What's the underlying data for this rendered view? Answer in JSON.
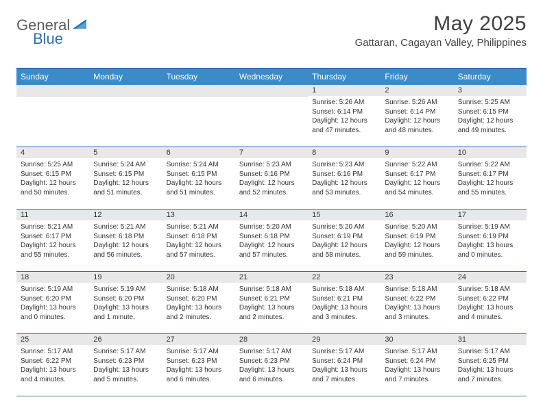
{
  "logo": {
    "part1": "General",
    "part2": "Blue"
  },
  "title": "May 2025",
  "location": "Gattaran, Cagayan Valley, Philippines",
  "colors": {
    "header_bg": "#3b8bc9",
    "border_top": "#2f6fb0",
    "row_divider": "#2f6fb0",
    "daynum_bg": "#e8e8e8",
    "text": "#333333",
    "logo_gray": "#5a5a5a",
    "logo_blue": "#2f6fb0",
    "title_color": "#404040",
    "background": "#ffffff"
  },
  "typography": {
    "month_title_size": 30,
    "location_size": 15,
    "day_header_size": 12,
    "daynum_size": 11,
    "detail_size": 10,
    "font_family": "Arial"
  },
  "day_headers": [
    "Sunday",
    "Monday",
    "Tuesday",
    "Wednesday",
    "Thursday",
    "Friday",
    "Saturday"
  ],
  "weeks": [
    [
      null,
      null,
      null,
      null,
      {
        "d": "1",
        "sr": "5:26 AM",
        "ss": "6:14 PM",
        "dl": "12 hours and 47 minutes."
      },
      {
        "d": "2",
        "sr": "5:26 AM",
        "ss": "6:14 PM",
        "dl": "12 hours and 48 minutes."
      },
      {
        "d": "3",
        "sr": "5:25 AM",
        "ss": "6:15 PM",
        "dl": "12 hours and 49 minutes."
      }
    ],
    [
      {
        "d": "4",
        "sr": "5:25 AM",
        "ss": "6:15 PM",
        "dl": "12 hours and 50 minutes."
      },
      {
        "d": "5",
        "sr": "5:24 AM",
        "ss": "6:15 PM",
        "dl": "12 hours and 51 minutes."
      },
      {
        "d": "6",
        "sr": "5:24 AM",
        "ss": "6:15 PM",
        "dl": "12 hours and 51 minutes."
      },
      {
        "d": "7",
        "sr": "5:23 AM",
        "ss": "6:16 PM",
        "dl": "12 hours and 52 minutes."
      },
      {
        "d": "8",
        "sr": "5:23 AM",
        "ss": "6:16 PM",
        "dl": "12 hours and 53 minutes."
      },
      {
        "d": "9",
        "sr": "5:22 AM",
        "ss": "6:17 PM",
        "dl": "12 hours and 54 minutes."
      },
      {
        "d": "10",
        "sr": "5:22 AM",
        "ss": "6:17 PM",
        "dl": "12 hours and 55 minutes."
      }
    ],
    [
      {
        "d": "11",
        "sr": "5:21 AM",
        "ss": "6:17 PM",
        "dl": "12 hours and 55 minutes."
      },
      {
        "d": "12",
        "sr": "5:21 AM",
        "ss": "6:18 PM",
        "dl": "12 hours and 56 minutes."
      },
      {
        "d": "13",
        "sr": "5:21 AM",
        "ss": "6:18 PM",
        "dl": "12 hours and 57 minutes."
      },
      {
        "d": "14",
        "sr": "5:20 AM",
        "ss": "6:18 PM",
        "dl": "12 hours and 57 minutes."
      },
      {
        "d": "15",
        "sr": "5:20 AM",
        "ss": "6:19 PM",
        "dl": "12 hours and 58 minutes."
      },
      {
        "d": "16",
        "sr": "5:20 AM",
        "ss": "6:19 PM",
        "dl": "12 hours and 59 minutes."
      },
      {
        "d": "17",
        "sr": "5:19 AM",
        "ss": "6:19 PM",
        "dl": "13 hours and 0 minutes."
      }
    ],
    [
      {
        "d": "18",
        "sr": "5:19 AM",
        "ss": "6:20 PM",
        "dl": "13 hours and 0 minutes."
      },
      {
        "d": "19",
        "sr": "5:19 AM",
        "ss": "6:20 PM",
        "dl": "13 hours and 1 minute."
      },
      {
        "d": "20",
        "sr": "5:18 AM",
        "ss": "6:20 PM",
        "dl": "13 hours and 2 minutes."
      },
      {
        "d": "21",
        "sr": "5:18 AM",
        "ss": "6:21 PM",
        "dl": "13 hours and 2 minutes."
      },
      {
        "d": "22",
        "sr": "5:18 AM",
        "ss": "6:21 PM",
        "dl": "13 hours and 3 minutes."
      },
      {
        "d": "23",
        "sr": "5:18 AM",
        "ss": "6:22 PM",
        "dl": "13 hours and 3 minutes."
      },
      {
        "d": "24",
        "sr": "5:18 AM",
        "ss": "6:22 PM",
        "dl": "13 hours and 4 minutes."
      }
    ],
    [
      {
        "d": "25",
        "sr": "5:17 AM",
        "ss": "6:22 PM",
        "dl": "13 hours and 4 minutes."
      },
      {
        "d": "26",
        "sr": "5:17 AM",
        "ss": "6:23 PM",
        "dl": "13 hours and 5 minutes."
      },
      {
        "d": "27",
        "sr": "5:17 AM",
        "ss": "6:23 PM",
        "dl": "13 hours and 6 minutes."
      },
      {
        "d": "28",
        "sr": "5:17 AM",
        "ss": "6:23 PM",
        "dl": "13 hours and 6 minutes."
      },
      {
        "d": "29",
        "sr": "5:17 AM",
        "ss": "6:24 PM",
        "dl": "13 hours and 7 minutes."
      },
      {
        "d": "30",
        "sr": "5:17 AM",
        "ss": "6:24 PM",
        "dl": "13 hours and 7 minutes."
      },
      {
        "d": "31",
        "sr": "5:17 AM",
        "ss": "6:25 PM",
        "dl": "13 hours and 7 minutes."
      }
    ]
  ],
  "labels": {
    "sunrise": "Sunrise:",
    "sunset": "Sunset:",
    "daylight": "Daylight:"
  }
}
